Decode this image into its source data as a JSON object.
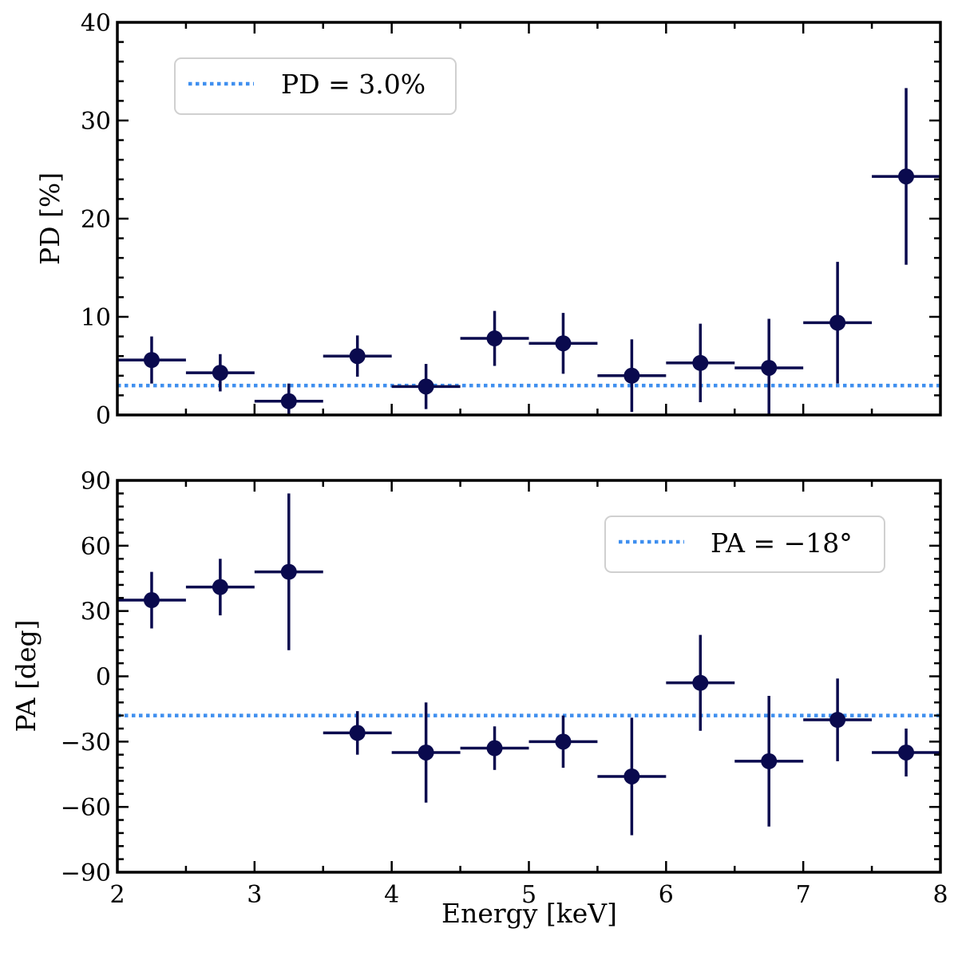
{
  "colors": {
    "points": "#0a0a4e",
    "reference_line": "#3f8fef",
    "axes": "#000000",
    "legend_border": "#d0d0d0",
    "background": "#ffffff"
  },
  "chart_data": [
    {
      "id": "pd",
      "type": "scatter",
      "xlabel": "",
      "ylabel": "PD [%]",
      "xlim": [
        2,
        8
      ],
      "ylim": [
        0,
        40
      ],
      "xticks": [
        2,
        3,
        4,
        5,
        6,
        7,
        8
      ],
      "yticks": [
        0,
        10,
        20,
        30,
        40
      ],
      "ytick_labels": [
        "0",
        "10",
        "20",
        "30",
        "40"
      ],
      "show_xtick_labels": false,
      "reference": {
        "value": 3.0,
        "label": "PD = 3.0%"
      },
      "legend_position": "top-left",
      "points": [
        {
          "x": 2.25,
          "xerr": 0.25,
          "y": 5.6,
          "ylo": 3.2,
          "yhi": 8.0
        },
        {
          "x": 2.75,
          "xerr": 0.25,
          "y": 4.3,
          "ylo": 2.4,
          "yhi": 6.2
        },
        {
          "x": 3.25,
          "xerr": 0.25,
          "y": 1.4,
          "ylo": 0.0,
          "yhi": 3.2
        },
        {
          "x": 3.75,
          "xerr": 0.25,
          "y": 6.0,
          "ylo": 3.9,
          "yhi": 8.1
        },
        {
          "x": 4.25,
          "xerr": 0.25,
          "y": 2.9,
          "ylo": 0.6,
          "yhi": 5.2
        },
        {
          "x": 4.75,
          "xerr": 0.25,
          "y": 7.8,
          "ylo": 5.0,
          "yhi": 10.6
        },
        {
          "x": 5.25,
          "xerr": 0.25,
          "y": 7.3,
          "ylo": 4.2,
          "yhi": 10.4
        },
        {
          "x": 5.75,
          "xerr": 0.25,
          "y": 4.0,
          "ylo": 0.3,
          "yhi": 7.7
        },
        {
          "x": 6.25,
          "xerr": 0.25,
          "y": 5.3,
          "ylo": 1.3,
          "yhi": 9.3
        },
        {
          "x": 6.75,
          "xerr": 0.25,
          "y": 4.8,
          "ylo": 0.0,
          "yhi": 9.8
        },
        {
          "x": 7.25,
          "xerr": 0.25,
          "y": 9.4,
          "ylo": 3.2,
          "yhi": 15.6
        },
        {
          "x": 7.75,
          "xerr": 0.25,
          "y": 24.3,
          "ylo": 15.3,
          "yhi": 33.3
        }
      ]
    },
    {
      "id": "pa",
      "type": "scatter",
      "xlabel": "Energy [keV]",
      "ylabel": "PA [deg]",
      "xlim": [
        2,
        8
      ],
      "ylim": [
        -90,
        90
      ],
      "xticks": [
        2,
        3,
        4,
        5,
        6,
        7,
        8
      ],
      "xtick_labels": [
        "2",
        "3",
        "4",
        "5",
        "6",
        "7",
        "8"
      ],
      "yticks": [
        -90,
        -60,
        -30,
        0,
        30,
        60,
        90
      ],
      "ytick_labels": [
        "−90",
        "−60",
        "−30",
        "0",
        "30",
        "60",
        "90"
      ],
      "show_xtick_labels": true,
      "reference": {
        "value": -18,
        "label": "PA = −18°"
      },
      "legend_position": "top-right",
      "points": [
        {
          "x": 2.25,
          "xerr": 0.25,
          "y": 35,
          "ylo": 22,
          "yhi": 48
        },
        {
          "x": 2.75,
          "xerr": 0.25,
          "y": 41,
          "ylo": 28,
          "yhi": 54
        },
        {
          "x": 3.25,
          "xerr": 0.25,
          "y": 48,
          "ylo": 12,
          "yhi": 84
        },
        {
          "x": 3.75,
          "xerr": 0.25,
          "y": -26,
          "ylo": -36,
          "yhi": -16
        },
        {
          "x": 4.25,
          "xerr": 0.25,
          "y": -35,
          "ylo": -58,
          "yhi": -12
        },
        {
          "x": 4.75,
          "xerr": 0.25,
          "y": -33,
          "ylo": -43,
          "yhi": -23
        },
        {
          "x": 5.25,
          "xerr": 0.25,
          "y": -30,
          "ylo": -42,
          "yhi": -18
        },
        {
          "x": 5.75,
          "xerr": 0.25,
          "y": -46,
          "ylo": -73,
          "yhi": -19
        },
        {
          "x": 6.25,
          "xerr": 0.25,
          "y": -3,
          "ylo": -25,
          "yhi": 19
        },
        {
          "x": 6.75,
          "xerr": 0.25,
          "y": -39,
          "ylo": -69,
          "yhi": -9
        },
        {
          "x": 7.25,
          "xerr": 0.25,
          "y": -20,
          "ylo": -39,
          "yhi": -1
        },
        {
          "x": 7.75,
          "xerr": 0.25,
          "y": -35,
          "ylo": -46,
          "yhi": -24
        }
      ]
    }
  ]
}
